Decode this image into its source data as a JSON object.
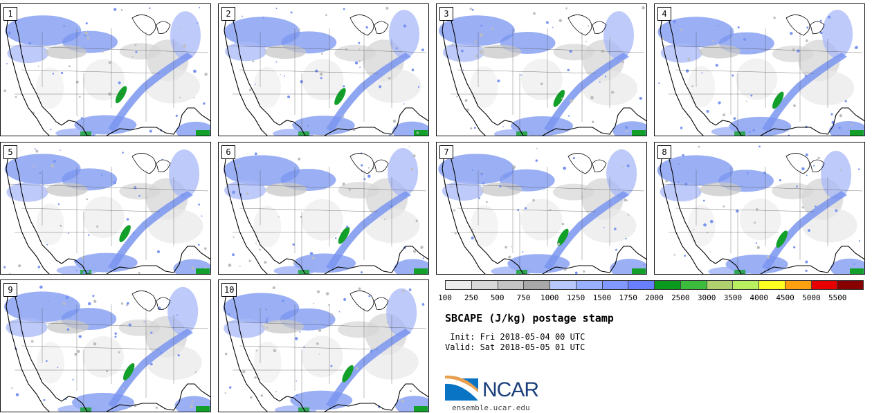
{
  "product": {
    "title": "SBCAPE (J/kg) postage stamp",
    "init": " Init: Fri 2018-05-04 00 UTC",
    "valid": "Valid: Sat 2018-05-05 01 UTC"
  },
  "members": [
    "1",
    "2",
    "3",
    "4",
    "5",
    "6",
    "7",
    "8",
    "9",
    "10"
  ],
  "colorbar": {
    "colors": [
      "#ececec",
      "#d9d9d9",
      "#c4c4c4",
      "#a8a8a8",
      "#b8c8ff",
      "#98b0ff",
      "#8098ff",
      "#6880ff",
      "#0a9a1e",
      "#3cbc3c",
      "#b0d070",
      "#b8f060",
      "#ffff20",
      "#ffa010",
      "#e80000",
      "#880000"
    ],
    "labels": [
      "100",
      "250",
      "500",
      "750",
      "1000",
      "1250",
      "1500",
      "1750",
      "2000",
      "2500",
      "3000",
      "3500",
      "4000",
      "4500",
      "5000",
      "5500"
    ]
  },
  "branding": {
    "logo_text": "NCAR",
    "site": "ensemble.ucar.edu"
  }
}
